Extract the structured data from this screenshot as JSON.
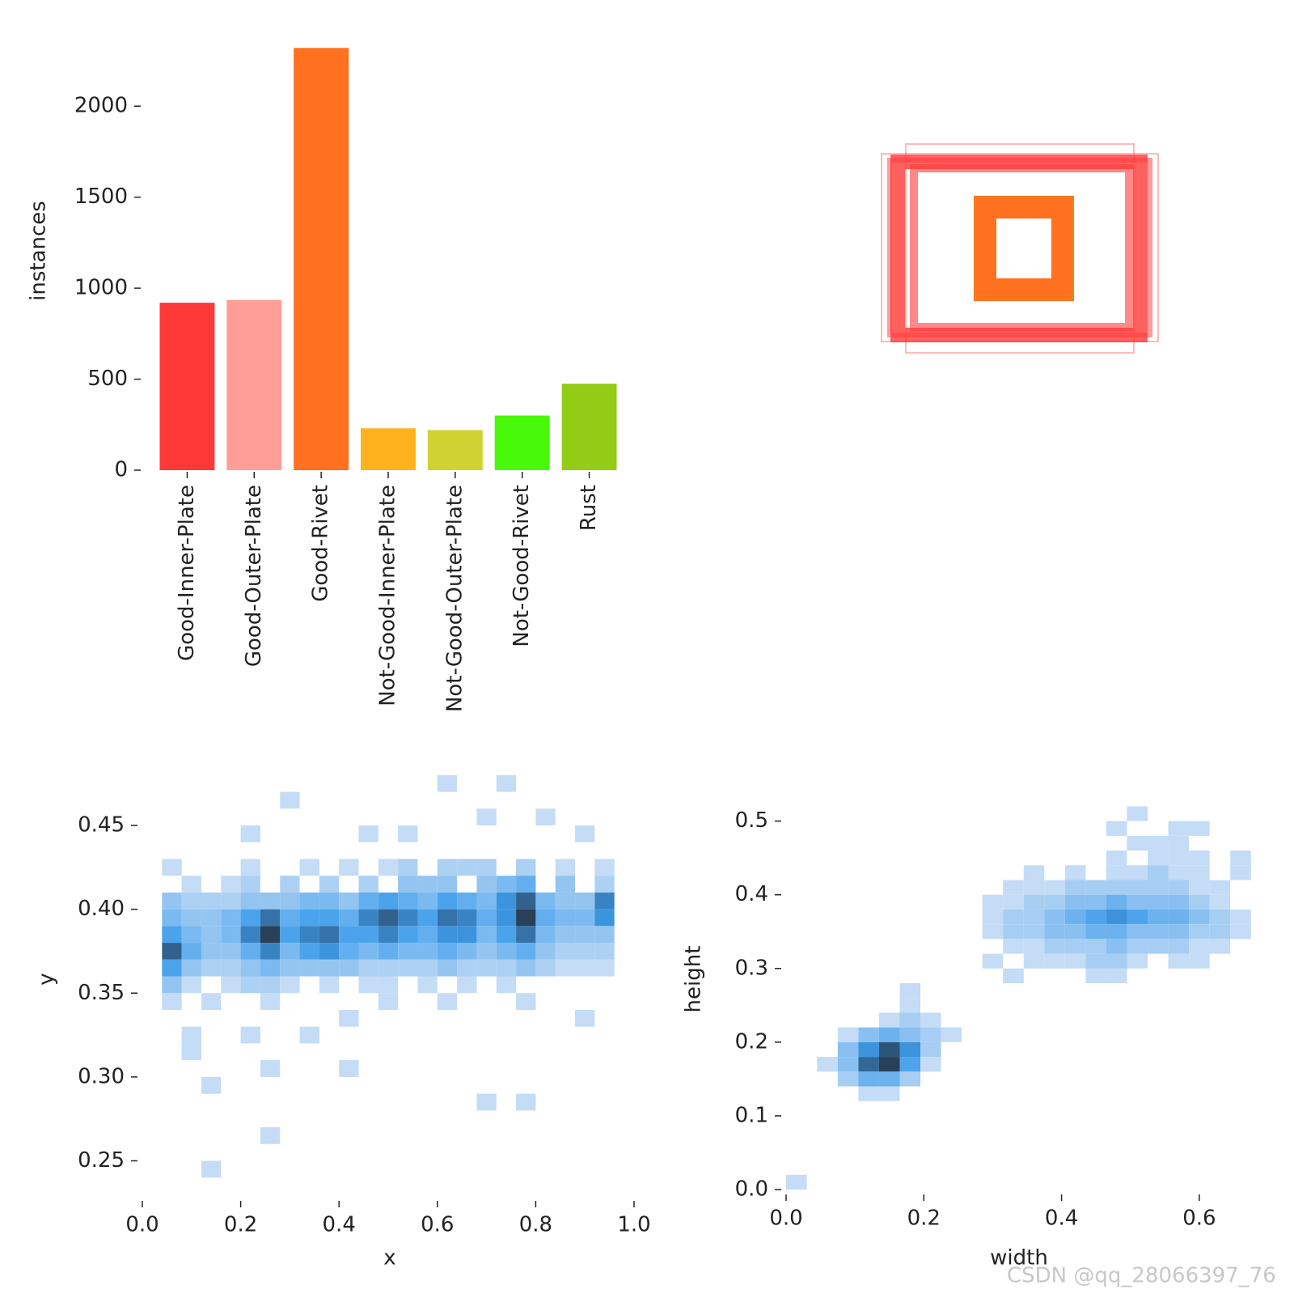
{
  "chart_data": [
    {
      "type": "bar",
      "ylabel": "instances",
      "categories": [
        "Good-Inner-Plate",
        "Good-Outer-Plate",
        "Good-Rivet",
        "Not-Good-Inner-Plate",
        "Not-Good-Outer-Plate",
        "Not-Good-Rivet",
        "Rust"
      ],
      "values": [
        920,
        935,
        2320,
        230,
        220,
        300,
        475
      ],
      "colors": [
        "#ff3838",
        "#ff9d97",
        "#ff701f",
        "#ffb21d",
        "#cfd231",
        "#48f90a",
        "#92cc17"
      ],
      "ylim": [
        0,
        2330
      ],
      "yticks": [
        0,
        500,
        1000,
        1500,
        2000
      ]
    },
    {
      "type": "heatmap",
      "xlabel": "x",
      "ylabel": "y",
      "xbin": 0.04,
      "ybin": 0.01,
      "colormap": [
        "#c4dcf5",
        "#3f9deb",
        "#2a3f58"
      ],
      "xlim": [
        0,
        1
      ],
      "ylim": [
        0.229,
        0.478
      ],
      "xticks": [
        {
          "value": 0,
          "label": "0.0"
        },
        0.2,
        0.4,
        0.6,
        0.8,
        {
          "value": 1,
          "label": "1.0"
        }
      ],
      "yticks": [
        0.25,
        {
          "value": 0.3,
          "label": "0.30"
        },
        0.35,
        {
          "value": 0.4,
          "label": "0.40"
        },
        0.45
      ],
      "rows": [
        {
          "y": 0.475,
          "x": [
            0.62,
            0.74
          ],
          "values": [
            1,
            1
          ]
        },
        {
          "y": 0.465,
          "x": [
            0.3
          ],
          "values": [
            1
          ]
        },
        {
          "y": 0.455,
          "x": [
            0.7,
            0.82
          ],
          "values": [
            1,
            1
          ]
        },
        {
          "y": 0.445,
          "x": [
            0.22,
            0.46,
            0.54,
            0.9
          ],
          "values": [
            1,
            1,
            1,
            1
          ]
        },
        {
          "y": 0.425,
          "x": [
            0.06,
            0.22,
            0.34,
            0.42,
            0.5,
            0.54,
            0.62,
            0.66,
            0.7,
            0.78,
            0.86,
            0.94
          ],
          "values": [
            1,
            1,
            1,
            1,
            1,
            2,
            2,
            2,
            2,
            2,
            1,
            1
          ]
        },
        {
          "y": 0.415,
          "x": [
            0.1,
            0.18,
            0.22,
            0.3,
            0.38,
            0.46,
            0.54,
            0.58,
            0.62,
            0.7,
            0.74,
            0.78,
            0.86,
            0.94
          ],
          "values": [
            1,
            1,
            2,
            2,
            2,
            2,
            3,
            3,
            3,
            3,
            4,
            5,
            3,
            2
          ]
        },
        {
          "y": 0.405,
          "x": [
            0.06,
            0.1,
            0.14,
            0.18,
            0.22,
            0.26,
            0.3,
            0.34,
            0.38,
            0.42,
            0.46,
            0.5,
            0.54,
            0.58,
            0.62,
            0.66,
            0.7,
            0.74,
            0.78,
            0.82,
            0.86,
            0.9,
            0.94
          ],
          "values": [
            3,
            2,
            2,
            2,
            3,
            3,
            3,
            4,
            4,
            3,
            5,
            6,
            5,
            4,
            6,
            5,
            4,
            7,
            10,
            4,
            3,
            3,
            8
          ]
        },
        {
          "y": 0.395,
          "x": [
            0.06,
            0.1,
            0.14,
            0.18,
            0.22,
            0.26,
            0.3,
            0.34,
            0.38,
            0.42,
            0.46,
            0.5,
            0.54,
            0.58,
            0.62,
            0.66,
            0.7,
            0.74,
            0.78,
            0.82,
            0.86,
            0.9,
            0.94
          ],
          "values": [
            4,
            3,
            3,
            4,
            6,
            9,
            5,
            6,
            6,
            5,
            8,
            10,
            8,
            6,
            9,
            8,
            5,
            7,
            12,
            5,
            4,
            4,
            7
          ]
        },
        {
          "y": 0.385,
          "x": [
            0.06,
            0.1,
            0.14,
            0.18,
            0.22,
            0.26,
            0.3,
            0.34,
            0.38,
            0.42,
            0.46,
            0.5,
            0.54,
            0.58,
            0.62,
            0.66,
            0.7,
            0.74,
            0.78,
            0.82,
            0.86,
            0.9,
            0.94
          ],
          "values": [
            6,
            4,
            3,
            4,
            8,
            12,
            6,
            8,
            9,
            6,
            6,
            8,
            6,
            5,
            7,
            7,
            4,
            6,
            9,
            4,
            3,
            3,
            3
          ]
        },
        {
          "y": 0.375,
          "x": [
            0.06,
            0.1,
            0.14,
            0.18,
            0.22,
            0.26,
            0.3,
            0.34,
            0.38,
            0.42,
            0.46,
            0.5,
            0.54,
            0.58,
            0.62,
            0.66,
            0.7,
            0.74,
            0.78,
            0.82,
            0.86,
            0.9,
            0.94
          ],
          "values": [
            10,
            5,
            3,
            3,
            5,
            8,
            4,
            6,
            7,
            5,
            4,
            5,
            4,
            4,
            5,
            4,
            3,
            4,
            5,
            3,
            2,
            2,
            2
          ]
        },
        {
          "y": 0.365,
          "x": [
            0.06,
            0.1,
            0.14,
            0.18,
            0.22,
            0.26,
            0.3,
            0.34,
            0.38,
            0.42,
            0.46,
            0.5,
            0.54,
            0.58,
            0.62,
            0.66,
            0.7,
            0.74,
            0.78,
            0.82,
            0.86,
            0.9,
            0.94
          ],
          "values": [
            6,
            3,
            2,
            2,
            3,
            4,
            3,
            3,
            3,
            3,
            2,
            2,
            2,
            2,
            3,
            2,
            2,
            2,
            3,
            2,
            1,
            1,
            1
          ]
        },
        {
          "y": 0.355,
          "x": [
            0.06,
            0.1,
            0.18,
            0.22,
            0.26,
            0.3,
            0.38,
            0.46,
            0.5,
            0.58,
            0.66,
            0.74
          ],
          "values": [
            3,
            1,
            1,
            2,
            2,
            1,
            1,
            1,
            1,
            1,
            1,
            1
          ]
        },
        {
          "y": 0.345,
          "x": [
            0.06,
            0.14,
            0.26,
            0.5,
            0.62,
            0.78
          ],
          "values": [
            1,
            1,
            1,
            1,
            1,
            1
          ]
        },
        {
          "y": 0.335,
          "x": [
            0.42,
            0.9
          ],
          "values": [
            1,
            1
          ]
        },
        {
          "y": 0.325,
          "x": [
            0.1,
            0.22,
            0.34
          ],
          "values": [
            1,
            1,
            1
          ]
        },
        {
          "y": 0.315,
          "x": [
            0.1
          ],
          "values": [
            1
          ]
        },
        {
          "y": 0.305,
          "x": [
            0.26,
            0.42
          ],
          "values": [
            1,
            1
          ]
        },
        {
          "y": 0.295,
          "x": [
            0.14
          ],
          "values": [
            1
          ]
        },
        {
          "y": 0.285,
          "x": [
            0.7,
            0.78
          ],
          "values": [
            1,
            1
          ]
        },
        {
          "y": 0.265,
          "x": [
            0.26
          ],
          "values": [
            1
          ]
        },
        {
          "y": 0.245,
          "x": [
            0.14
          ],
          "values": [
            1
          ]
        }
      ]
    },
    {
      "type": "heatmap",
      "xlabel": "width",
      "ylabel": "height",
      "xbin": 0.03,
      "ybin": 0.02,
      "colormap": [
        "#c4dcf5",
        "#3f9deb",
        "#2a3f58"
      ],
      "xlim": [
        0,
        0.68
      ],
      "ylim": [
        0,
        0.56
      ],
      "xticks": [
        {
          "value": 0,
          "label": "0.0"
        },
        0.2,
        0.4,
        0.6
      ],
      "yticks": [
        {
          "value": 0,
          "label": "0.0"
        },
        0.1,
        0.2,
        0.3,
        0.4,
        0.5
      ],
      "rows": [
        {
          "y": 0.51,
          "x": [
            0.51
          ],
          "values": [
            1
          ]
        },
        {
          "y": 0.49,
          "x": [
            0.48,
            0.57,
            0.6
          ],
          "values": [
            1,
            1,
            1
          ]
        },
        {
          "y": 0.47,
          "x": [
            0.51,
            0.54,
            0.57
          ],
          "values": [
            1,
            1,
            1
          ]
        },
        {
          "y": 0.45,
          "x": [
            0.48,
            0.54,
            0.57,
            0.6,
            0.66
          ],
          "values": [
            1,
            1,
            1,
            1,
            1
          ]
        },
        {
          "y": 0.43,
          "x": [
            0.36,
            0.42,
            0.48,
            0.51,
            0.54,
            0.57,
            0.6,
            0.66
          ],
          "values": [
            1,
            1,
            1,
            1,
            2,
            1,
            1,
            1
          ]
        },
        {
          "y": 0.41,
          "x": [
            0.33,
            0.36,
            0.39,
            0.42,
            0.45,
            0.48,
            0.51,
            0.54,
            0.57,
            0.6,
            0.63
          ],
          "values": [
            1,
            1,
            1,
            2,
            2,
            2,
            2,
            2,
            2,
            1,
            1
          ]
        },
        {
          "y": 0.39,
          "x": [
            0.3,
            0.33,
            0.36,
            0.39,
            0.42,
            0.45,
            0.48,
            0.51,
            0.54,
            0.57,
            0.6,
            0.63
          ],
          "values": [
            1,
            1,
            2,
            2,
            3,
            3,
            4,
            3,
            3,
            3,
            2,
            1
          ]
        },
        {
          "y": 0.37,
          "x": [
            0.3,
            0.33,
            0.36,
            0.39,
            0.42,
            0.45,
            0.48,
            0.51,
            0.54,
            0.57,
            0.6,
            0.63,
            0.66
          ],
          "values": [
            1,
            2,
            2,
            3,
            4,
            5,
            6,
            5,
            4,
            4,
            3,
            2,
            1
          ]
        },
        {
          "y": 0.35,
          "x": [
            0.3,
            0.33,
            0.36,
            0.39,
            0.42,
            0.45,
            0.48,
            0.51,
            0.54,
            0.57,
            0.6,
            0.63,
            0.66
          ],
          "values": [
            1,
            2,
            2,
            3,
            3,
            4,
            4,
            3,
            3,
            3,
            2,
            2,
            1
          ]
        },
        {
          "y": 0.33,
          "x": [
            0.33,
            0.36,
            0.39,
            0.42,
            0.45,
            0.48,
            0.51,
            0.54,
            0.57,
            0.6,
            0.63
          ],
          "values": [
            1,
            1,
            2,
            2,
            2,
            3,
            2,
            2,
            2,
            1,
            1
          ]
        },
        {
          "y": 0.31,
          "x": [
            0.3,
            0.36,
            0.39,
            0.42,
            0.45,
            0.48,
            0.51,
            0.57,
            0.6
          ],
          "values": [
            1,
            1,
            1,
            1,
            2,
            2,
            1,
            1,
            1
          ]
        },
        {
          "y": 0.29,
          "x": [
            0.33,
            0.45,
            0.48
          ],
          "values": [
            1,
            1,
            1
          ]
        },
        {
          "y": 0.27,
          "x": [
            0.18
          ],
          "values": [
            1
          ]
        },
        {
          "y": 0.25,
          "x": [
            0.18
          ],
          "values": [
            1
          ]
        },
        {
          "y": 0.23,
          "x": [
            0.15,
            0.18,
            0.21
          ],
          "values": [
            1,
            2,
            1
          ]
        },
        {
          "y": 0.21,
          "x": [
            0.09,
            0.12,
            0.15,
            0.18,
            0.21,
            0.24
          ],
          "values": [
            1,
            3,
            4,
            3,
            2,
            1
          ]
        },
        {
          "y": 0.19,
          "x": [
            0.09,
            0.12,
            0.15,
            0.18,
            0.21
          ],
          "values": [
            3,
            6,
            9,
            6,
            2
          ]
        },
        {
          "y": 0.17,
          "x": [
            0.06,
            0.09,
            0.12,
            0.15,
            0.18,
            0.21
          ],
          "values": [
            1,
            3,
            8,
            10,
            5,
            1
          ]
        },
        {
          "y": 0.15,
          "x": [
            0.09,
            0.12,
            0.15,
            0.18
          ],
          "values": [
            2,
            4,
            4,
            2
          ]
        },
        {
          "y": 0.13,
          "x": [
            0.12,
            0.15
          ],
          "values": [
            1,
            1
          ]
        },
        {
          "y": 0.01,
          "x": [
            0.015
          ],
          "values": [
            1
          ]
        }
      ]
    }
  ],
  "watermark": "CSDN @qq_28066397_76"
}
